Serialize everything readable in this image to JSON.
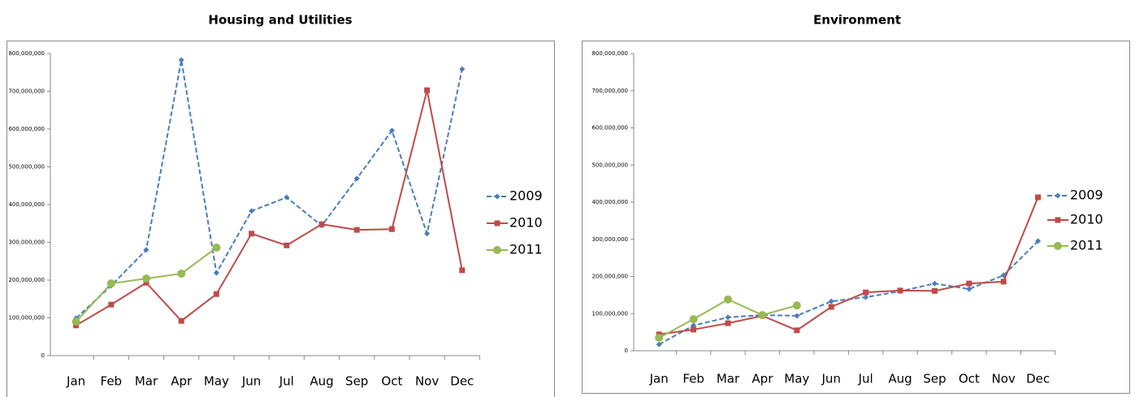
{
  "chart_data": [
    {
      "type": "line",
      "title": "Housing and Utilities",
      "categories": [
        "Jan",
        "Feb",
        "Mar",
        "Apr",
        "May",
        "Jun",
        "Jul",
        "Aug",
        "Sep",
        "Oct",
        "Nov",
        "Dec"
      ],
      "series": [
        {
          "name": "2009",
          "color": "#4a7ebb",
          "line_style": "dashed",
          "marker": "diamond",
          "values": [
            99000000,
            185000000,
            280000000,
            783000000,
            219000000,
            383000000,
            419000000,
            344000000,
            469000000,
            596000000,
            323000000,
            759000000
          ]
        },
        {
          "name": "2010",
          "color": "#be4b48",
          "line_style": "solid",
          "marker": "square",
          "values": [
            80000000,
            135000000,
            193000000,
            92000000,
            163000000,
            323000000,
            292000000,
            348000000,
            333000000,
            335000000,
            703000000,
            226000000
          ]
        },
        {
          "name": "2011",
          "color": "#98b954",
          "line_style": "solid",
          "marker": "circle",
          "values": [
            90000000,
            191000000,
            204000000,
            217000000,
            286000000,
            null,
            null,
            null,
            null,
            null,
            null,
            null
          ]
        }
      ],
      "ylim": [
        0,
        800000000
      ],
      "yticks": [
        0,
        {
          "value": 100000000,
          "label": "100,000,000"
        },
        {
          "value": 200000000,
          "label": "200,000,000"
        },
        {
          "value": 300000000,
          "label": "300,000,000"
        },
        {
          "value": 400000000,
          "label": "400,000,000"
        },
        {
          "value": 500000000,
          "label": "500,000,000"
        },
        {
          "value": 600000000,
          "label": "600,000,000"
        },
        {
          "value": 700000000,
          "label": "700,000,000"
        },
        {
          "value": 800000000,
          "label": "800,000,000"
        }
      ]
    },
    {
      "type": "line",
      "title": "Environment",
      "categories": [
        "Jan",
        "Feb",
        "Mar",
        "Apr",
        "May",
        "Jun",
        "Jul",
        "Aug",
        "Sep",
        "Oct",
        "Nov",
        "Dec"
      ],
      "series": [
        {
          "name": "2009",
          "color": "#4a7ebb",
          "line_style": "dashed",
          "marker": "diamond",
          "values": [
            17000000,
            68000000,
            90000000,
            96000000,
            94000000,
            133000000,
            144000000,
            160000000,
            181000000,
            166000000,
            203000000,
            295000000
          ]
        },
        {
          "name": "2010",
          "color": "#be4b48",
          "line_style": "solid",
          "marker": "square",
          "values": [
            44000000,
            57000000,
            74000000,
            94000000,
            55000000,
            118000000,
            157000000,
            162000000,
            161000000,
            181000000,
            186000000,
            413000000
          ]
        },
        {
          "name": "2011",
          "color": "#98b954",
          "line_style": "solid",
          "marker": "circle",
          "values": [
            35000000,
            85000000,
            138000000,
            96000000,
            122000000,
            null,
            null,
            null,
            null,
            null,
            null,
            null
          ]
        }
      ],
      "ylim": [
        0,
        800000000
      ],
      "yticks": [
        0,
        {
          "value": 100000000,
          "label": "100,000,000"
        },
        {
          "value": 200000000,
          "label": "200,000,000"
        },
        {
          "value": 300000000,
          "label": "300,000,000"
        },
        {
          "value": 400000000,
          "label": "400,000,000"
        },
        {
          "value": 500000000,
          "label": "500,000,000"
        },
        {
          "value": 600000000,
          "label": "600,000,000"
        },
        {
          "value": 700000000,
          "label": "700,000,000"
        },
        {
          "value": 800000000,
          "label": "800,000,000"
        }
      ]
    }
  ]
}
